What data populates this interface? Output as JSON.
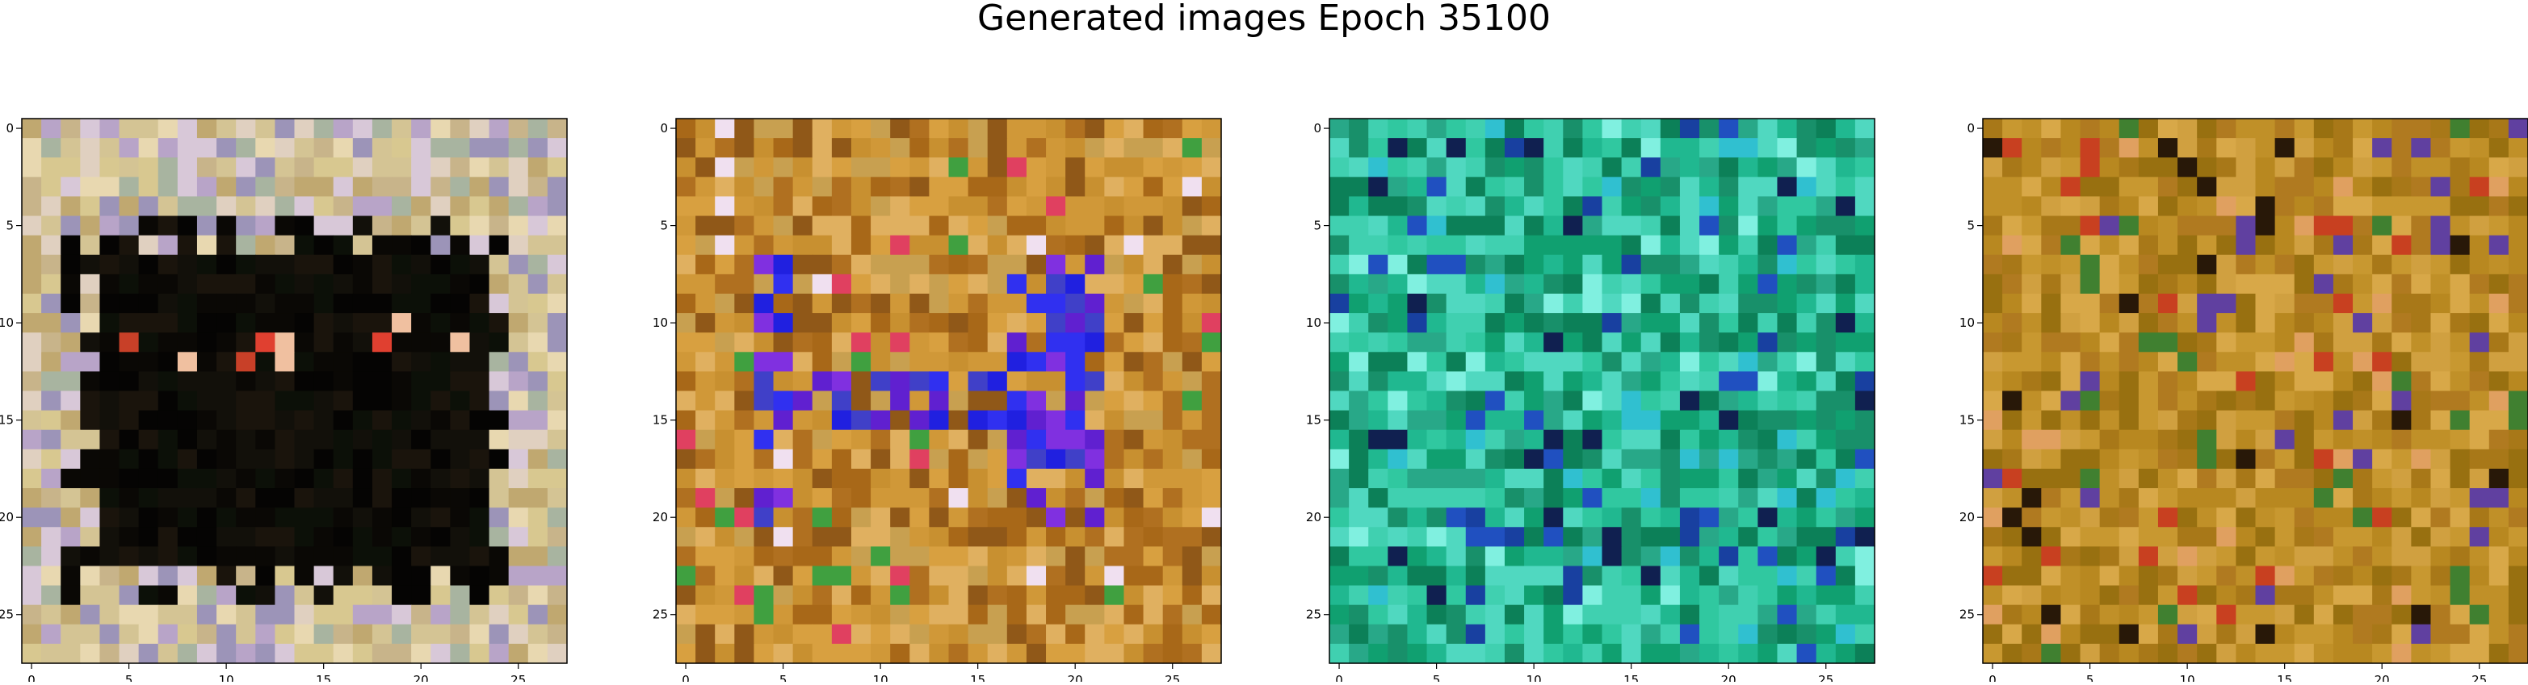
{
  "figure": {
    "title": "Generated images Epoch 35100"
  },
  "chart_data": [
    {
      "type": "heatmap",
      "grid_size": [
        28,
        28
      ],
      "xticks": [
        0,
        5,
        10,
        15,
        20,
        25
      ],
      "yticks": [
        0,
        5,
        10,
        15,
        20,
        25
      ],
      "xlim": [
        -0.5,
        27.5
      ],
      "ylim": [
        27.5,
        -0.5
      ],
      "xlabel": "",
      "ylabel": "",
      "pattern": "light-border-dark-square",
      "colors": {
        "border": [
          "#c8b48a",
          "#d4c494",
          "#b8a4c8",
          "#e8d8b0",
          "#a8b4a0",
          "#d8c8d8",
          "#c0a870",
          "#e0d0c0",
          "#9c94b8",
          "#d8c890"
        ],
        "inner": [
          "#0a0805",
          "#12100a",
          "#050403",
          "#1a140c",
          "#0c1008"
        ],
        "accent": [
          "#e04030",
          "#f0c0a0",
          "#c84028"
        ]
      }
    },
    {
      "type": "heatmap",
      "grid_size": [
        28,
        28
      ],
      "xticks": [
        0,
        5,
        10,
        15,
        20,
        25
      ],
      "yticks": [
        0,
        5,
        10,
        15,
        20,
        25
      ],
      "xlim": [
        -0.5,
        27.5
      ],
      "ylim": [
        27.5,
        -0.5
      ],
      "xlabel": "",
      "ylabel": "",
      "pattern": "orange-with-blue-frame",
      "colors": {
        "base": [
          "#c89030",
          "#d8a040",
          "#b07020",
          "#e0b060",
          "#a86818",
          "#c8a050",
          "#905818",
          "#d09838"
        ],
        "frame": [
          "#2020e0",
          "#3030f0",
          "#6020d0",
          "#4040c8",
          "#8030e0"
        ],
        "accent": [
          "#e04060",
          "#f0e0f0",
          "#40a040"
        ]
      }
    },
    {
      "type": "heatmap",
      "grid_size": [
        28,
        28
      ],
      "xticks": [
        0,
        5,
        10,
        15,
        20,
        25
      ],
      "yticks": [
        0,
        5,
        10,
        15,
        20,
        25
      ],
      "xlim": [
        -0.5,
        27.5
      ],
      "ylim": [
        27.5,
        -0.5
      ],
      "xlabel": "",
      "ylabel": "",
      "pattern": "teal-noise",
      "colors": {
        "base": [
          "#10a070",
          "#20b890",
          "#30c8a0",
          "#18906a",
          "#40d0b0",
          "#0c8058",
          "#28a888",
          "#50d8c0"
        ],
        "accent": [
          "#2050c0",
          "#1840a0",
          "#80f0e0",
          "#30c0d0",
          "#102050"
        ]
      }
    },
    {
      "type": "heatmap",
      "grid_size": [
        28,
        28
      ],
      "xticks": [
        0,
        5,
        10,
        15,
        20,
        25
      ],
      "yticks": [
        0,
        5,
        10,
        15,
        20,
        25
      ],
      "xlim": [
        -0.5,
        27.5
      ],
      "ylim": [
        27.5,
        -0.5
      ],
      "xlabel": "",
      "ylabel": "",
      "pattern": "ochre-noise",
      "colors": {
        "base": [
          "#b88820",
          "#c89830",
          "#a87818",
          "#d0a040",
          "#987010",
          "#c09028",
          "#b07a20",
          "#d8a848"
        ],
        "accent": [
          "#281808",
          "#c84020",
          "#408030",
          "#e0a060",
          "#6040a0"
        ]
      }
    }
  ]
}
